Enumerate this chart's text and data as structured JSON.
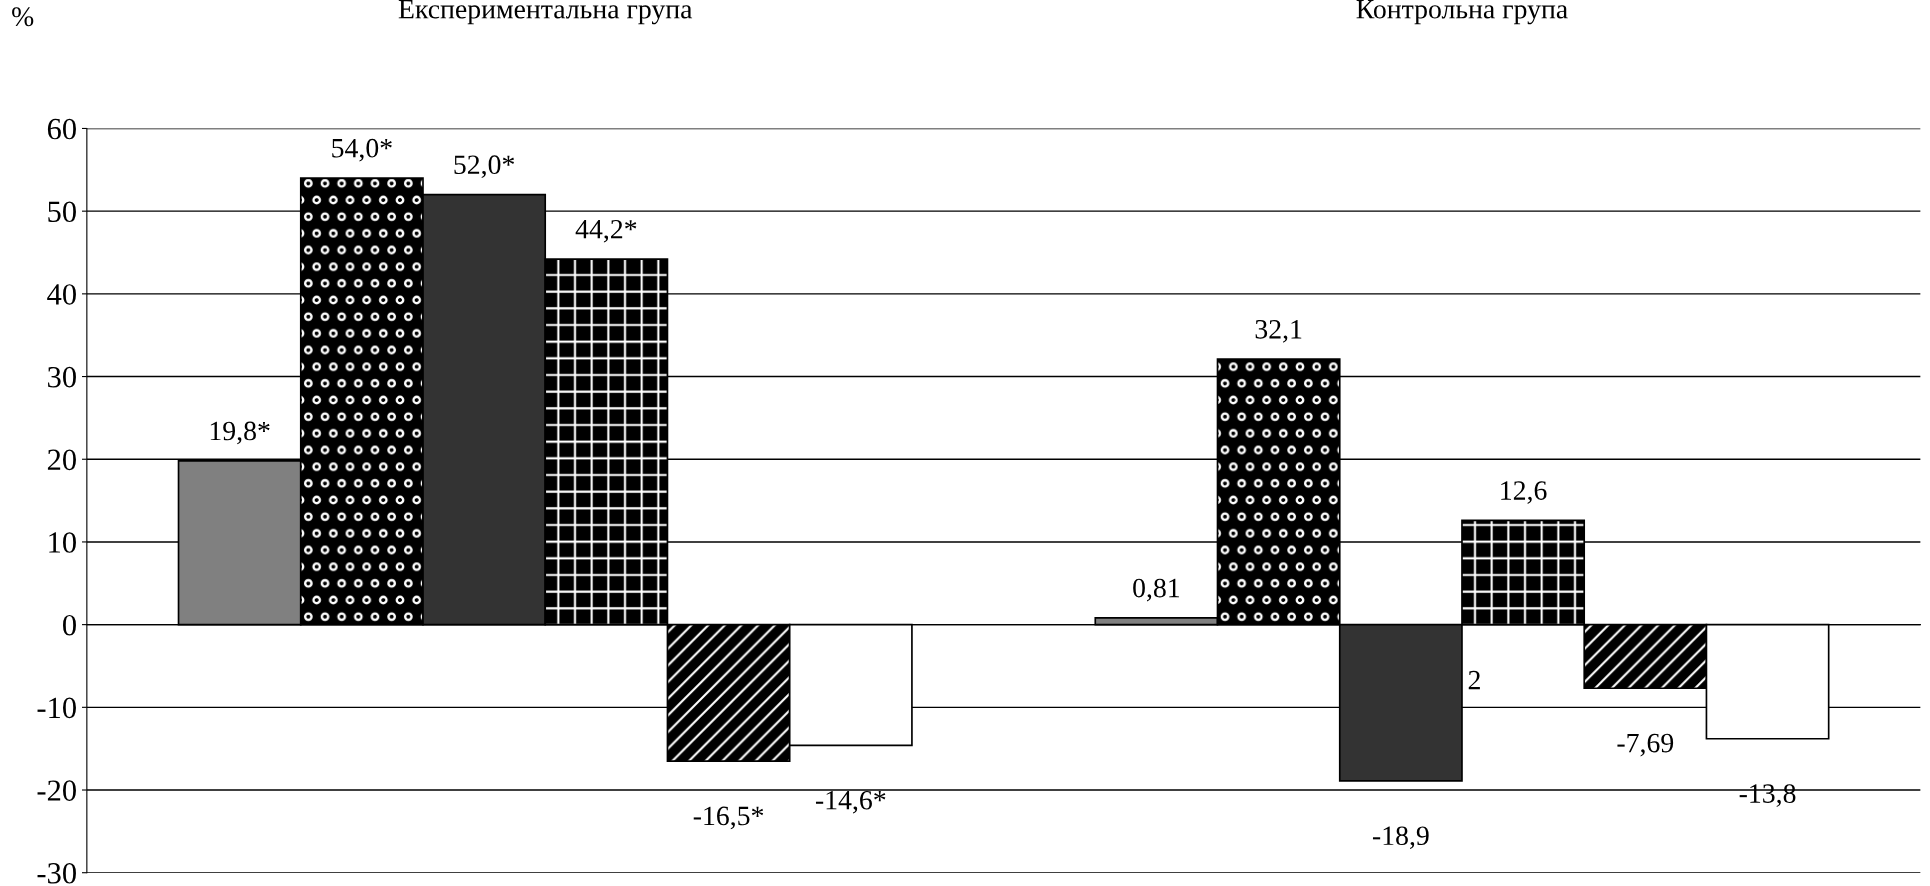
{
  "chart_data": {
    "type": "bar",
    "ylabel": "%",
    "categories": [
      "Експериментальна група",
      "Контрольна група"
    ],
    "series": [
      {
        "color": "#808080",
        "values": [
          19.8,
          0.81
        ],
        "value_labels": [
          "19,8*",
          "0,81"
        ]
      },
      {
        "color": "#000000",
        "values": [
          54.0,
          32.1
        ],
        "value_labels": [
          "54,0*",
          "32,1"
        ]
      },
      {
        "color": "#333333",
        "values": [
          52.0,
          -18.9
        ],
        "value_labels": [
          "52,0*",
          "-18,9"
        ]
      },
      {
        "color": "#000000",
        "values": [
          44.2,
          12.6
        ],
        "value_labels": [
          "44,2*",
          "12,6"
        ]
      },
      {
        "color": "#000000",
        "values": [
          -16.5,
          -7.69
        ],
        "value_labels": [
          "-16,5*",
          "-7,69"
        ]
      },
      {
        "color": "#ffffff",
        "values": [
          -14.6,
          -13.8
        ],
        "value_labels": [
          "-14,6*",
          "-13,8"
        ]
      }
    ],
    "annotations": [
      {
        "text": "2",
        "x": "Контрольна група",
        "y": -7
      }
    ],
    "ylim": [
      -30,
      60
    ],
    "yticks": [
      -30,
      -20,
      -10,
      0,
      10,
      20,
      30,
      40,
      50,
      60
    ],
    "grid": "y"
  }
}
